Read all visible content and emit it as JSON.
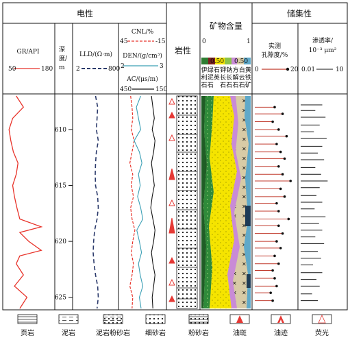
{
  "headers": {
    "electrical": "电性",
    "mineral": "矿物含量",
    "reservoir": "储集性",
    "lithology": "岩性"
  },
  "tracks": {
    "gr": {
      "label": "GR/API",
      "min": "50",
      "max": "180",
      "color": "#e8332a"
    },
    "depth": {
      "label_top": "深",
      "label_mid": "度/",
      "label_bot": "m"
    },
    "lld": {
      "label": "LLD/(Ω·m)",
      "min": "2",
      "max": "800",
      "color": "#2b3a6b"
    },
    "cnl": {
      "label": "CNL/%",
      "min": "45",
      "max": "-15",
      "color": "#e8332a"
    },
    "den": {
      "label": "DEN/(g/cm³)",
      "min": "2",
      "max": "3",
      "color": "#3a9fb5"
    },
    "ac": {
      "label": "AC/(μs/m)",
      "min": "450",
      "max": "150",
      "color": "#111111"
    },
    "mineral": {
      "min": "0",
      "max": "1",
      "mark_left": "0.50",
      "mark_right": "0.50",
      "cols": [
        "伊利石",
        "绿泥石",
        "石英",
        "钾长石",
        "钠长石",
        "方解石",
        "白云石",
        "黄铁矿"
      ]
    },
    "porosity": {
      "label1": "实测",
      "label2": "孔隙度/%",
      "min": "0",
      "max": "20",
      "color": "#c0392b"
    },
    "perm": {
      "label1": "渗透率/",
      "label2": "10⁻³ μm²",
      "min": "0.01",
      "max": "10"
    }
  },
  "legend": [
    {
      "name": "页岩",
      "pattern": "shale"
    },
    {
      "name": "泥岩",
      "pattern": "mudstone"
    },
    {
      "name": "泥岩粉砂岩",
      "pattern": "muddy-siltstone"
    },
    {
      "name": "细砂岩",
      "pattern": "fine-sandstone"
    },
    {
      "name": "粉砂岩",
      "pattern": "siltstone"
    },
    {
      "name": "油斑",
      "pattern": "oil-spot"
    },
    {
      "name": "油迹",
      "pattern": "oil-trace"
    },
    {
      "name": "荧光",
      "pattern": "fluorescence"
    }
  ],
  "chart_data": {
    "type": "line",
    "depth_range": [
      607,
      626
    ],
    "depth_ticks": [
      610,
      615,
      620,
      625
    ],
    "series": [
      {
        "name": "GR/API",
        "range": [
          50,
          180
        ],
        "scale": "linear",
        "values": [
          [
            607,
            80
          ],
          [
            608,
            100
          ],
          [
            609,
            70
          ],
          [
            610,
            60
          ],
          [
            611,
            65
          ],
          [
            612,
            72
          ],
          [
            613,
            85
          ],
          [
            614,
            80
          ],
          [
            615,
            70
          ],
          [
            616,
            75
          ],
          [
            617,
            82
          ],
          [
            618,
            90
          ],
          [
            618.7,
            150
          ],
          [
            619.2,
            90
          ],
          [
            620,
            115
          ],
          [
            620.8,
            150
          ],
          [
            621.3,
            90
          ],
          [
            622,
            80
          ],
          [
            623,
            100
          ],
          [
            624,
            75
          ],
          [
            625,
            110
          ],
          [
            626,
            90
          ]
        ]
      },
      {
        "name": "LLD/(Ω·m)",
        "range": [
          2,
          800
        ],
        "scale": "log",
        "values": [
          [
            607,
            40
          ],
          [
            608,
            55
          ],
          [
            609,
            50
          ],
          [
            610,
            45
          ],
          [
            611,
            60
          ],
          [
            612,
            45
          ],
          [
            613,
            40
          ],
          [
            614,
            38
          ],
          [
            615,
            40
          ],
          [
            616,
            55
          ],
          [
            617,
            60
          ],
          [
            618,
            50
          ],
          [
            619,
            35
          ],
          [
            620,
            30
          ],
          [
            621,
            28
          ],
          [
            622,
            32
          ],
          [
            623,
            40
          ],
          [
            624,
            55
          ],
          [
            625,
            60
          ],
          [
            626,
            50
          ]
        ]
      },
      {
        "name": "CNL/%",
        "range": [
          45,
          -15
        ],
        "scale": "linear",
        "values": [
          [
            607,
            32
          ],
          [
            608,
            30
          ],
          [
            609,
            29
          ],
          [
            610,
            31
          ],
          [
            611,
            27
          ],
          [
            612,
            30
          ],
          [
            613,
            33
          ],
          [
            614,
            29
          ],
          [
            615,
            31
          ],
          [
            616,
            28
          ],
          [
            617,
            32
          ],
          [
            618,
            30
          ],
          [
            619,
            26
          ],
          [
            620,
            29
          ],
          [
            621,
            31
          ],
          [
            622,
            28
          ],
          [
            623,
            30
          ],
          [
            624,
            33
          ],
          [
            625,
            29
          ],
          [
            626,
            30
          ]
        ]
      },
      {
        "name": "DEN/(g/cm³)",
        "range": [
          2,
          3
        ],
        "scale": "linear",
        "values": [
          [
            607,
            2.45
          ],
          [
            608,
            2.35
          ],
          [
            609,
            2.4
          ],
          [
            610,
            2.45
          ],
          [
            611,
            2.3
          ],
          [
            612,
            2.42
          ],
          [
            613,
            2.48
          ],
          [
            614,
            2.4
          ],
          [
            615,
            2.44
          ],
          [
            616,
            2.38
          ],
          [
            617,
            2.45
          ],
          [
            618,
            2.5
          ],
          [
            619,
            2.36
          ],
          [
            620,
            2.42
          ],
          [
            621,
            2.47
          ],
          [
            622,
            2.4
          ],
          [
            623,
            2.44
          ],
          [
            624,
            2.5
          ],
          [
            625,
            2.42
          ],
          [
            626,
            2.46
          ]
        ]
      },
      {
        "name": "AC/(μs/m)",
        "range": [
          450,
          150
        ],
        "scale": "linear",
        "values": [
          [
            607,
            240
          ],
          [
            608,
            230
          ],
          [
            609,
            220
          ],
          [
            610,
            235
          ],
          [
            611,
            215
          ],
          [
            612,
            225
          ],
          [
            613,
            240
          ],
          [
            614,
            230
          ],
          [
            615,
            220
          ],
          [
            616,
            235
          ],
          [
            617,
            245
          ],
          [
            618,
            230
          ],
          [
            619,
            215
          ],
          [
            620,
            225
          ],
          [
            621,
            240
          ],
          [
            622,
            230
          ],
          [
            623,
            215
          ],
          [
            624,
            225
          ],
          [
            625,
            235
          ],
          [
            626,
            230
          ]
        ]
      },
      {
        "name": "孔隙度/%",
        "range": [
          0,
          20
        ],
        "scale": "linear",
        "values": [
          [
            608,
            10
          ],
          [
            608.6,
            14
          ],
          [
            609.3,
            9
          ],
          [
            610,
            12
          ],
          [
            610.6,
            16
          ],
          [
            611.3,
            11
          ],
          [
            612,
            13
          ],
          [
            612.6,
            15
          ],
          [
            613.3,
            12
          ],
          [
            614,
            14
          ],
          [
            614.6,
            18
          ],
          [
            615.3,
            13
          ],
          [
            616,
            15
          ],
          [
            616.6,
            11
          ],
          [
            617.3,
            12
          ],
          [
            618,
            17
          ],
          [
            618.6,
            12
          ],
          [
            619.3,
            14
          ],
          [
            620,
            11
          ],
          [
            620.6,
            13
          ],
          [
            621.3,
            10
          ],
          [
            622,
            12
          ],
          [
            622.6,
            9
          ],
          [
            623.3,
            10
          ],
          [
            624,
            11
          ],
          [
            624.6,
            8
          ],
          [
            625.3,
            9
          ]
        ]
      },
      {
        "name": "渗透率/10⁻³ μm²",
        "range": [
          0.01,
          10
        ],
        "scale": "log",
        "values": [
          [
            607.8,
            0.3
          ],
          [
            608.3,
            0.1
          ],
          [
            608.9,
            0.5
          ],
          [
            609.6,
            0.2
          ],
          [
            610.2,
            0.08
          ],
          [
            610.8,
            0.6
          ],
          [
            611.5,
            0.3
          ],
          [
            612.1,
            0.15
          ],
          [
            612.7,
            0.4
          ],
          [
            613.4,
            0.1
          ],
          [
            614,
            0.25
          ],
          [
            614.6,
            0.7
          ],
          [
            615.2,
            0.2
          ],
          [
            615.9,
            0.12
          ],
          [
            616.5,
            0.3
          ],
          [
            617.1,
            0.09
          ],
          [
            617.8,
            0.5
          ],
          [
            618.4,
            0.18
          ],
          [
            619,
            0.3
          ],
          [
            619.6,
            0.1
          ],
          [
            620.2,
            0.4
          ],
          [
            620.9,
            0.15
          ],
          [
            621.5,
            0.25
          ],
          [
            622.1,
            0.07
          ],
          [
            622.8,
            0.3
          ],
          [
            623.4,
            0.12
          ],
          [
            624,
            0.2
          ],
          [
            624.7,
            0.06
          ],
          [
            625.3,
            0.15
          ]
        ]
      }
    ]
  }
}
